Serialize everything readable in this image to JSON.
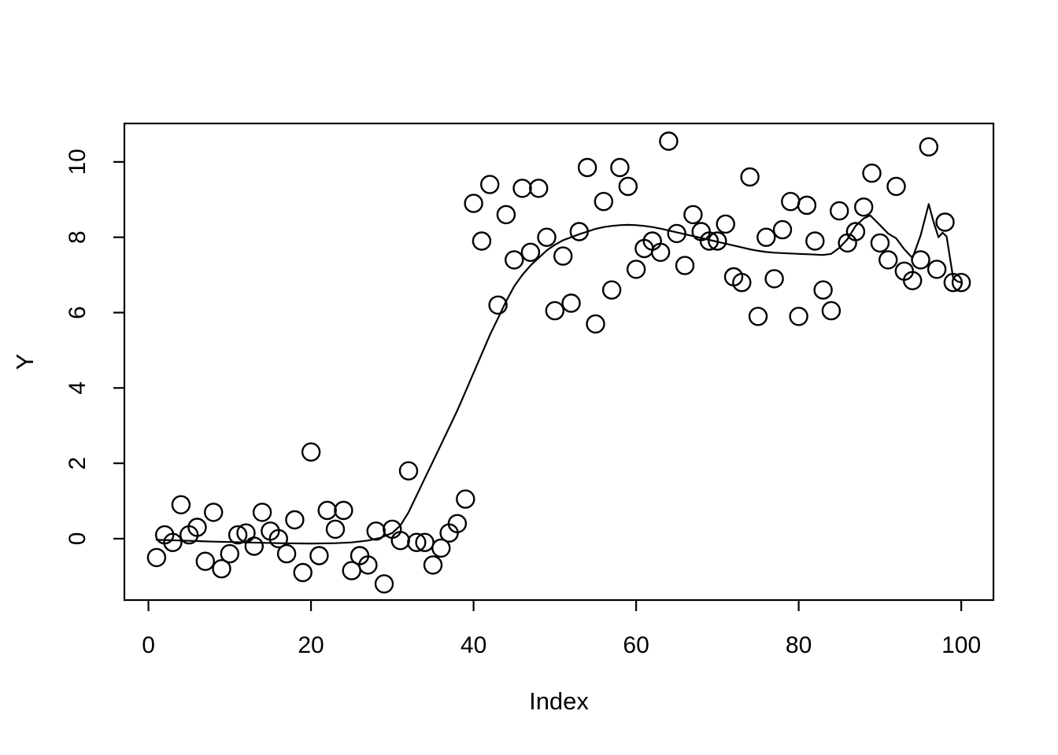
{
  "chart_data": {
    "type": "scatter",
    "title": "",
    "xlabel": "Index",
    "ylabel": "Y",
    "x_ticks": [
      0,
      20,
      40,
      60,
      80,
      100
    ],
    "y_ticks": [
      0,
      2,
      4,
      6,
      8,
      10
    ],
    "xlim": [
      -2.96,
      103.96
    ],
    "ylim": [
      -1.63,
      11.02
    ],
    "grid": "off",
    "legend": "none",
    "marker": "open-circle",
    "colors": {
      "foreground": "#000000",
      "background": "#ffffff"
    },
    "points": [
      [
        1,
        -0.5
      ],
      [
        2,
        0.1
      ],
      [
        3,
        -0.1
      ],
      [
        4,
        0.9
      ],
      [
        5,
        0.1
      ],
      [
        6,
        0.3
      ],
      [
        7,
        -0.6
      ],
      [
        8,
        0.7
      ],
      [
        9,
        -0.8
      ],
      [
        10,
        -0.4
      ],
      [
        11,
        0.1
      ],
      [
        12,
        0.15
      ],
      [
        13,
        -0.2
      ],
      [
        14,
        0.7
      ],
      [
        15,
        0.2
      ],
      [
        16,
        0.0
      ],
      [
        17,
        -0.4
      ],
      [
        18,
        0.5
      ],
      [
        19,
        -0.9
      ],
      [
        20,
        2.3
      ],
      [
        21,
        -0.45
      ],
      [
        22,
        0.75
      ],
      [
        23,
        0.25
      ],
      [
        24,
        0.75
      ],
      [
        25,
        -0.85
      ],
      [
        26,
        -0.45
      ],
      [
        27,
        -0.7
      ],
      [
        28,
        0.2
      ],
      [
        29,
        -1.2
      ],
      [
        30,
        0.25
      ],
      [
        31,
        -0.05
      ],
      [
        32,
        1.8
      ],
      [
        33,
        -0.1
      ],
      [
        34,
        -0.1
      ],
      [
        35,
        -0.7
      ],
      [
        36,
        -0.25
      ],
      [
        37,
        0.15
      ],
      [
        38,
        0.4
      ],
      [
        39,
        1.05
      ],
      [
        40,
        8.9
      ],
      [
        41,
        7.9
      ],
      [
        42,
        9.4
      ],
      [
        43,
        6.2
      ],
      [
        44,
        8.6
      ],
      [
        45,
        7.4
      ],
      [
        46,
        9.3
      ],
      [
        47,
        7.6
      ],
      [
        48,
        9.3
      ],
      [
        49,
        8.0
      ],
      [
        50,
        6.05
      ],
      [
        51,
        7.5
      ],
      [
        52,
        6.25
      ],
      [
        53,
        8.15
      ],
      [
        54,
        9.85
      ],
      [
        55,
        5.7
      ],
      [
        56,
        8.95
      ],
      [
        57,
        6.6
      ],
      [
        58,
        9.85
      ],
      [
        59,
        9.35
      ],
      [
        60,
        7.15
      ],
      [
        61,
        7.7
      ],
      [
        62,
        7.9
      ],
      [
        63,
        7.6
      ],
      [
        64,
        10.55
      ],
      [
        65,
        8.1
      ],
      [
        66,
        7.25
      ],
      [
        67,
        8.6
      ],
      [
        68,
        8.15
      ],
      [
        69,
        7.9
      ],
      [
        70,
        7.9
      ],
      [
        71,
        8.35
      ],
      [
        72,
        6.95
      ],
      [
        73,
        6.8
      ],
      [
        74,
        9.6
      ],
      [
        75,
        5.9
      ],
      [
        76,
        8.0
      ],
      [
        77,
        6.9
      ],
      [
        78,
        8.2
      ],
      [
        79,
        8.95
      ],
      [
        80,
        5.9
      ],
      [
        81,
        8.85
      ],
      [
        82,
        7.9
      ],
      [
        83,
        6.6
      ],
      [
        84,
        6.05
      ],
      [
        85,
        8.7
      ],
      [
        86,
        7.85
      ],
      [
        87,
        8.15
      ],
      [
        88,
        8.8
      ],
      [
        89,
        9.7
      ],
      [
        90,
        7.85
      ],
      [
        91,
        7.4
      ],
      [
        92,
        9.35
      ],
      [
        93,
        7.1
      ],
      [
        94,
        6.85
      ],
      [
        95,
        7.4
      ],
      [
        96,
        10.4
      ],
      [
        97,
        7.15
      ],
      [
        98,
        8.4
      ],
      [
        99,
        6.8
      ],
      [
        100,
        6.8
      ]
    ],
    "smooth_line": [
      [
        1,
        -0.03
      ],
      [
        4,
        -0.05
      ],
      [
        8,
        -0.08
      ],
      [
        12,
        -0.1
      ],
      [
        16,
        -0.12
      ],
      [
        20,
        -0.13
      ],
      [
        23,
        -0.12
      ],
      [
        25,
        -0.1
      ],
      [
        27,
        -0.05
      ],
      [
        28.5,
        0.02
      ],
      [
        30,
        0.15
      ],
      [
        31,
        0.35
      ],
      [
        32,
        0.7
      ],
      [
        33,
        1.15
      ],
      [
        34,
        1.6
      ],
      [
        35,
        2.05
      ],
      [
        36,
        2.5
      ],
      [
        37,
        2.95
      ],
      [
        38,
        3.4
      ],
      [
        39,
        3.9
      ],
      [
        40,
        4.4
      ],
      [
        41,
        4.9
      ],
      [
        42,
        5.4
      ],
      [
        43,
        5.85
      ],
      [
        44,
        6.3
      ],
      [
        45,
        6.7
      ],
      [
        46,
        7.0
      ],
      [
        47,
        7.25
      ],
      [
        48,
        7.45
      ],
      [
        49,
        7.65
      ],
      [
        50,
        7.8
      ],
      [
        51,
        7.92
      ],
      [
        52,
        8.0
      ],
      [
        53,
        8.08
      ],
      [
        54,
        8.15
      ],
      [
        55,
        8.22
      ],
      [
        56,
        8.27
      ],
      [
        57,
        8.3
      ],
      [
        58,
        8.32
      ],
      [
        59,
        8.33
      ],
      [
        60,
        8.32
      ],
      [
        61,
        8.3
      ],
      [
        62,
        8.27
      ],
      [
        63,
        8.23
      ],
      [
        64,
        8.18
      ],
      [
        65,
        8.13
      ],
      [
        66,
        8.08
      ],
      [
        67,
        8.03
      ],
      [
        68,
        7.98
      ],
      [
        69,
        7.93
      ],
      [
        70,
        7.88
      ],
      [
        71,
        7.83
      ],
      [
        72,
        7.78
      ],
      [
        73,
        7.73
      ],
      [
        74,
        7.68
      ],
      [
        75,
        7.64
      ],
      [
        76,
        7.61
      ],
      [
        77,
        7.59
      ],
      [
        78,
        7.58
      ],
      [
        79,
        7.57
      ],
      [
        80,
        7.56
      ],
      [
        81,
        7.55
      ],
      [
        82,
        7.54
      ],
      [
        83,
        7.53
      ],
      [
        84,
        7.56
      ],
      [
        85,
        7.72
      ],
      [
        86,
        7.95
      ],
      [
        87,
        8.3
      ],
      [
        88,
        8.5
      ],
      [
        88.8,
        8.58
      ],
      [
        90,
        8.32
      ],
      [
        91,
        8.1
      ],
      [
        92,
        7.97
      ],
      [
        93,
        7.68
      ],
      [
        94,
        7.45
      ],
      [
        95,
        8.05
      ],
      [
        96,
        8.88
      ],
      [
        96.6,
        8.4
      ],
      [
        97.2,
        8.0
      ],
      [
        97.7,
        8.12
      ],
      [
        98.2,
        8.02
      ],
      [
        99,
        6.92
      ],
      [
        99.5,
        6.83
      ],
      [
        100,
        6.8
      ]
    ]
  }
}
